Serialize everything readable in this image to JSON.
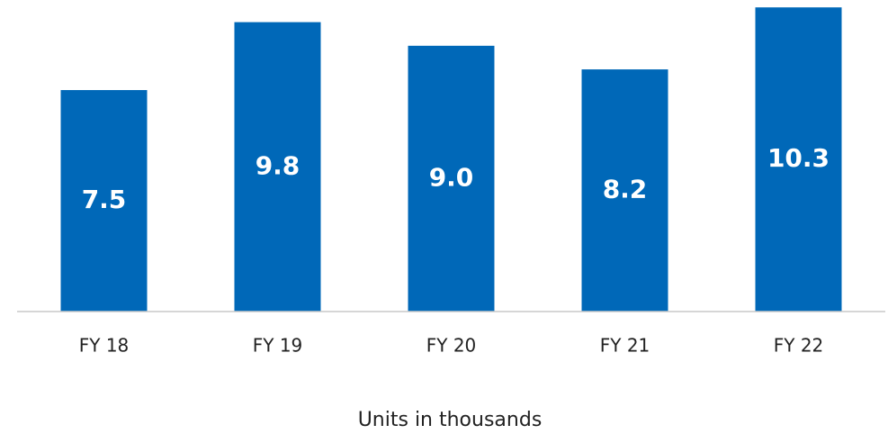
{
  "chart_data": {
    "type": "bar",
    "categories": [
      "FY 18",
      "FY 19",
      "FY 20",
      "FY 21",
      "FY 22"
    ],
    "values": [
      7.5,
      9.8,
      9.0,
      8.2,
      10.3
    ],
    "value_labels": [
      "7.5",
      "9.8",
      "9.0",
      "8.2",
      "10.3"
    ],
    "color": "#0068b8",
    "xlabel": "Units in thousands",
    "ylim": [
      0,
      10.55
    ]
  }
}
